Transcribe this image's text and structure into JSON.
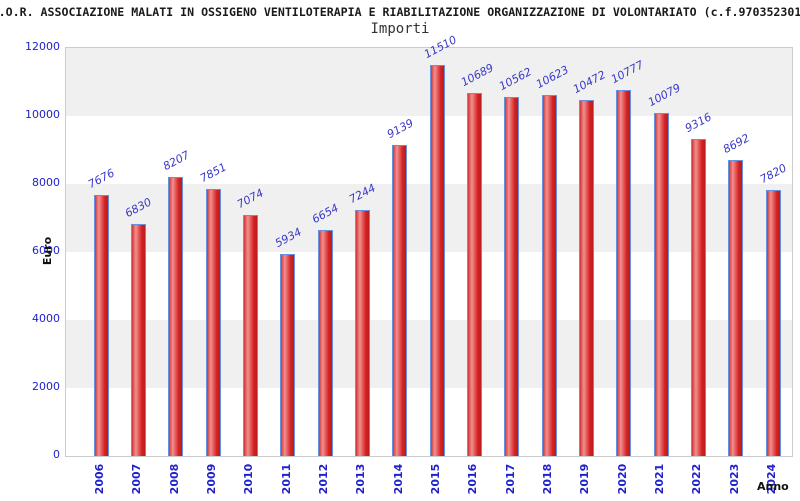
{
  "header": {
    "title": ".O.R. ASSOCIAZIONE MALATI IN OSSIGENO VENTILOTERAPIA E RIABILITAZIONE ORGANIZZAZIONE DI VOLONTARIATO (c.f.970352301"
  },
  "chart_data": {
    "type": "bar",
    "title": "Importi",
    "xlabel": "Anno",
    "ylabel": "Euro",
    "categories": [
      "2006",
      "2007",
      "2008",
      "2009",
      "2010",
      "2011",
      "2012",
      "2013",
      "2014",
      "2015",
      "2016",
      "2017",
      "2018",
      "2019",
      "2020",
      "2021",
      "2022",
      "2023",
      "2024"
    ],
    "values": [
      7676,
      6830,
      8207,
      7851,
      7074,
      5934,
      6654,
      7244,
      9139,
      11510,
      10689,
      10562,
      10623,
      10472,
      10777,
      10079,
      9316,
      8692,
      7820
    ],
    "ylim": [
      0,
      12000
    ],
    "ytick_step": 2000,
    "grid": "alternating-horizontal-bands",
    "legend": "none",
    "colors": {
      "bar_fill_dark": "#d42222",
      "bar_fill_light": "#ef9191",
      "bar_border": "#6691e0",
      "value_label": "#3838c8",
      "tick_label": "#2222cc",
      "band_gray": "#f0f0f0",
      "band_white": "#ffffff",
      "plot_border": "#cccccc",
      "title_text": "#333333",
      "header_text": "#1a1a1a"
    }
  }
}
